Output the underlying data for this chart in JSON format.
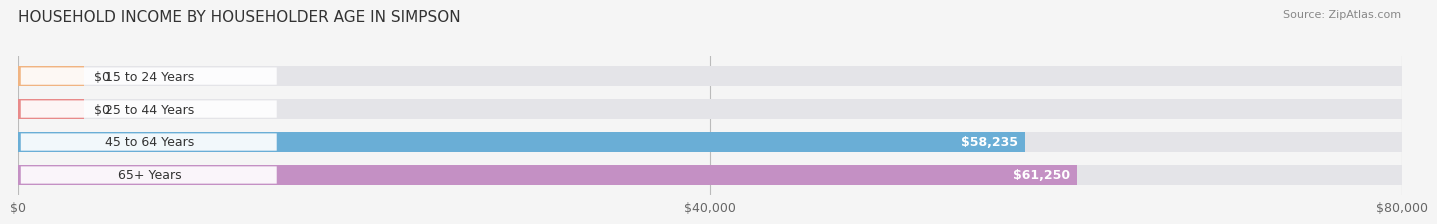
{
  "title": "HOUSEHOLD INCOME BY HOUSEHOLDER AGE IN SIMPSON",
  "source": "Source: ZipAtlas.com",
  "categories": [
    "15 to 24 Years",
    "25 to 44 Years",
    "45 to 64 Years",
    "65+ Years"
  ],
  "values": [
    0,
    0,
    58235,
    61250
  ],
  "bar_colors": [
    "#f0b482",
    "#e88a8a",
    "#6aaed6",
    "#c490c4"
  ],
  "bar_labels": [
    "$0",
    "$0",
    "$58,235",
    "$61,250"
  ],
  "label_colors": [
    "#333333",
    "#333333",
    "#ffffff",
    "#ffffff"
  ],
  "xlim": [
    0,
    80000
  ],
  "xticks": [
    0,
    40000,
    80000
  ],
  "xticklabels": [
    "$0",
    "$40,000",
    "$80,000"
  ],
  "background_color": "#f5f5f5",
  "bar_bg_color": "#e4e4e8",
  "title_fontsize": 11,
  "source_fontsize": 8,
  "tick_fontsize": 9,
  "label_fontsize": 9,
  "category_fontsize": 9
}
